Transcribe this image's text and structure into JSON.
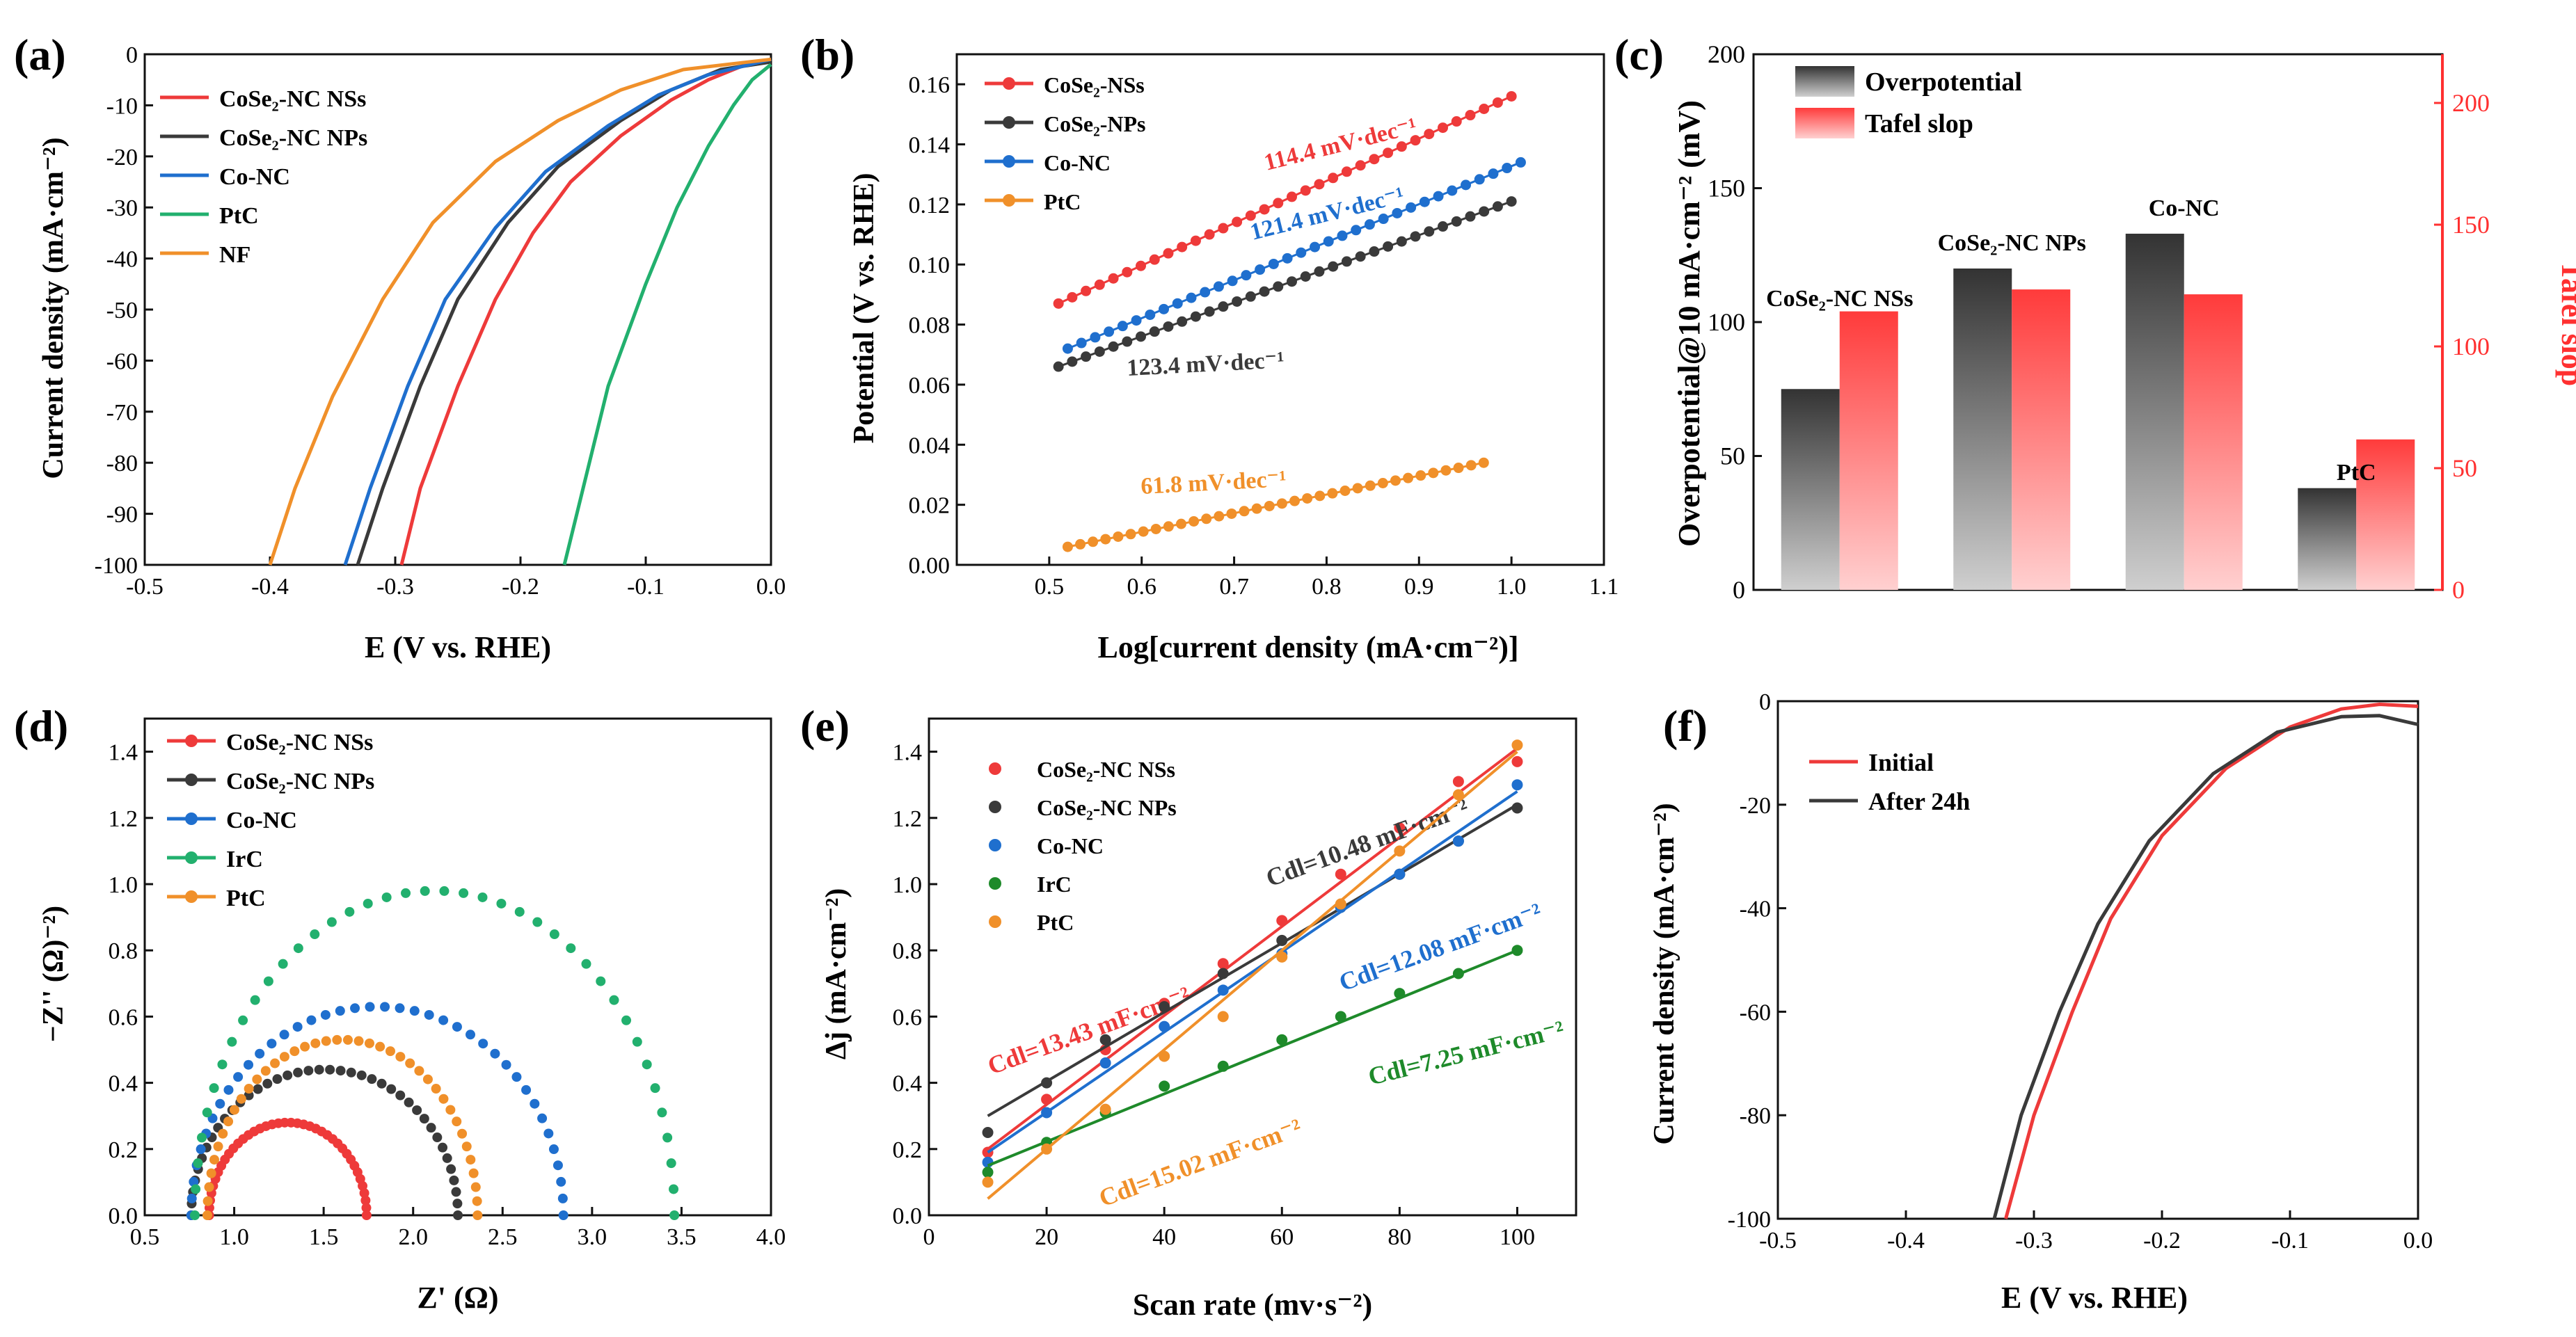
{
  "chart_data": [
    {
      "panel": "(a)",
      "type": "line",
      "xlabel": "E (V vs. RHE)",
      "ylabel": "Current density (mA·cm⁻²)",
      "xlim": [
        -0.5,
        0.0
      ],
      "ylim": [
        -100,
        0
      ],
      "xticks": [
        "-0.5",
        "-0.4",
        "-0.3",
        "-0.2",
        "-0.1",
        "0.0"
      ],
      "yticks": [
        "0",
        "-10",
        "-20",
        "-30",
        "-40",
        "-50",
        "-60",
        "-70",
        "-80",
        "-90",
        "-100"
      ],
      "legend_position": "top-left",
      "series": [
        {
          "name": "CoSe₂-NC NSs",
          "color": "#ee3a3a",
          "points": [
            [
              -0.295,
              -100
            ],
            [
              -0.28,
              -85
            ],
            [
              -0.25,
              -65
            ],
            [
              -0.22,
              -48
            ],
            [
              -0.19,
              -35
            ],
            [
              -0.16,
              -25
            ],
            [
              -0.12,
              -16
            ],
            [
              -0.08,
              -9
            ],
            [
              -0.05,
              -5
            ],
            [
              -0.02,
              -2
            ],
            [
              0.0,
              -1
            ]
          ]
        },
        {
          "name": "CoSe₂-NC NPs",
          "color": "#3a3a3a",
          "points": [
            [
              -0.33,
              -100
            ],
            [
              -0.31,
              -85
            ],
            [
              -0.28,
              -65
            ],
            [
              -0.25,
              -48
            ],
            [
              -0.21,
              -33
            ],
            [
              -0.17,
              -22
            ],
            [
              -0.12,
              -13
            ],
            [
              -0.08,
              -7
            ],
            [
              -0.04,
              -3
            ],
            [
              0.0,
              -1.5
            ]
          ]
        },
        {
          "name": "Co-NC",
          "color": "#1f6fce",
          "points": [
            [
              -0.34,
              -100
            ],
            [
              -0.32,
              -85
            ],
            [
              -0.29,
              -65
            ],
            [
              -0.26,
              -48
            ],
            [
              -0.22,
              -34
            ],
            [
              -0.18,
              -23
            ],
            [
              -0.13,
              -14
            ],
            [
              -0.09,
              -8
            ],
            [
              -0.05,
              -4
            ],
            [
              0.0,
              -1
            ]
          ]
        },
        {
          "name": "PtC",
          "color": "#22b06e",
          "points": [
            [
              -0.165,
              -100
            ],
            [
              -0.15,
              -85
            ],
            [
              -0.13,
              -65
            ],
            [
              -0.1,
              -45
            ],
            [
              -0.075,
              -30
            ],
            [
              -0.05,
              -18
            ],
            [
              -0.03,
              -10
            ],
            [
              -0.015,
              -5
            ],
            [
              0.0,
              -2
            ]
          ]
        },
        {
          "name": "NF",
          "color": "#f0902a",
          "points": [
            [
              -0.4,
              -100
            ],
            [
              -0.38,
              -85
            ],
            [
              -0.35,
              -67
            ],
            [
              -0.31,
              -48
            ],
            [
              -0.27,
              -33
            ],
            [
              -0.22,
              -21
            ],
            [
              -0.17,
              -13
            ],
            [
              -0.12,
              -7
            ],
            [
              -0.07,
              -3
            ],
            [
              0.0,
              -1
            ]
          ]
        }
      ]
    },
    {
      "panel": "(b)",
      "type": "scatter",
      "xlabel": "Log[current density (mA·cm⁻²)]",
      "ylabel": "Potential (V vs. RHE)",
      "xlim": [
        0.4,
        1.1
      ],
      "ylim": [
        0.0,
        0.17
      ],
      "xticks": [
        "0.5",
        "0.6",
        "0.7",
        "0.8",
        "0.9",
        "1.0",
        "1.1"
      ],
      "yticks": [
        "0.00",
        "0.02",
        "0.04",
        "0.06",
        "0.08",
        "0.10",
        "0.12",
        "0.14",
        "0.16"
      ],
      "legend_position": "top-left",
      "series": [
        {
          "name": "CoSe₂-NSs",
          "color": "#ee3a3a",
          "x_start": 0.51,
          "x_end": 1.0,
          "y_start": 0.087,
          "y_end": 0.156,
          "slope_label": "114.4 mV·dec⁻¹"
        },
        {
          "name": "CoSe₂-NPs",
          "color": "#3a3a3a",
          "x_start": 0.51,
          "x_end": 1.0,
          "y_start": 0.066,
          "y_end": 0.121,
          "slope_label": "123.4 mV·dec⁻¹"
        },
        {
          "name": "Co-NC",
          "color": "#1f6fce",
          "x_start": 0.52,
          "x_end": 1.01,
          "y_start": 0.072,
          "y_end": 0.134,
          "slope_label": "121.4 mV·dec⁻¹"
        },
        {
          "name": "PtC",
          "color": "#f0902a",
          "x_start": 0.52,
          "x_end": 0.97,
          "y_start": 0.006,
          "y_end": 0.034,
          "slope_label": "61.8 mV·dec⁻¹"
        }
      ]
    },
    {
      "panel": "(c)",
      "type": "bar",
      "categories": [
        "CoSe₂-NC NSs",
        "CoSe₂-NC NPs",
        "Co-NC",
        "PtC"
      ],
      "series": [
        {
          "name": "Overpotential",
          "axis": "left",
          "values": [
            75,
            120,
            133,
            38
          ]
        },
        {
          "name": "Tafel slop",
          "axis": "right",
          "values": [
            114.4,
            123.4,
            121.4,
            61.8
          ]
        }
      ],
      "ylabel": "Overpotential@10 mA·cm⁻² (mV)",
      "ylabel_right": "Tafel slop",
      "ylim": [
        0,
        200
      ],
      "ylim_right": [
        0,
        220
      ],
      "yticks": [
        "0",
        "50",
        "100",
        "150",
        "200"
      ],
      "yticks_right": [
        "0",
        "50",
        "100",
        "150",
        "200"
      ],
      "legend_position": "top-left",
      "colors": {
        "overpotential": "#333333",
        "tafel": "#ff4a4a",
        "right_axis": "#ff3030"
      }
    },
    {
      "panel": "(d)",
      "type": "scatter",
      "xlabel": "Z' (Ω)",
      "ylabel": "−Z'' (Ω)⁻²)",
      "xlim": [
        0.5,
        4.0
      ],
      "ylim": [
        0.0,
        1.5
      ],
      "xticks": [
        "0.5",
        "1.0",
        "1.5",
        "2.0",
        "2.5",
        "3.0",
        "3.5",
        "4.0"
      ],
      "yticks": [
        "0.0",
        "0.2",
        "0.4",
        "0.6",
        "0.8",
        "1.0",
        "1.2",
        "1.4"
      ],
      "legend_position": "top-left",
      "series": [
        {
          "name": "CoSe₂-NC NSs",
          "color": "#ee3a3a",
          "x0": 0.86,
          "x1": 1.74,
          "peak": 0.28
        },
        {
          "name": "CoSe₂-NC NPs",
          "color": "#3a3a3a",
          "x0": 0.76,
          "x1": 2.25,
          "peak": 0.44
        },
        {
          "name": "Co-NC",
          "color": "#1f6fce",
          "x0": 0.76,
          "x1": 2.84,
          "peak": 0.63
        },
        {
          "name": "IrC",
          "color": "#22b06e",
          "x0": 0.78,
          "x1": 3.46,
          "peak": 0.98
        },
        {
          "name": "PtC",
          "color": "#f0902a",
          "x0": 0.85,
          "x1": 2.36,
          "peak": 0.53
        }
      ]
    },
    {
      "panel": "(e)",
      "type": "scatter",
      "xlabel": "Scan rate (mv·s⁻²)",
      "ylabel": "Δj (mA·cm⁻²)",
      "xlim": [
        0,
        110
      ],
      "ylim": [
        0.0,
        1.5
      ],
      "xticks": [
        "0",
        "20",
        "40",
        "60",
        "80",
        "100"
      ],
      "yticks": [
        "0.0",
        "0.2",
        "0.4",
        "0.6",
        "0.8",
        "1.0",
        "1.2",
        "1.4"
      ],
      "legend_position": "top-left",
      "x": [
        10,
        20,
        30,
        40,
        50,
        60,
        70,
        80,
        90,
        100
      ],
      "series": [
        {
          "name": "CoSe₂-NC NSs",
          "color": "#ee3a3a",
          "values": [
            0.19,
            0.35,
            0.5,
            0.64,
            0.76,
            0.89,
            1.03,
            1.17,
            1.31,
            1.37
          ],
          "fit": [
            0.2,
            1.41
          ],
          "label": "Cdl=13.43 mF·cm⁻²"
        },
        {
          "name": "CoSe₂-NC NPs",
          "color": "#3a3a3a",
          "values": [
            0.25,
            0.4,
            0.53,
            0.63,
            0.73,
            0.83,
            0.93,
            1.03,
            1.13,
            1.23
          ],
          "fit": [
            0.3,
            1.24
          ],
          "label": "Cdl=10.48 mF·cm⁻²"
        },
        {
          "name": "Co-NC",
          "color": "#1f6fce",
          "values": [
            0.16,
            0.31,
            0.46,
            0.57,
            0.68,
            0.79,
            0.93,
            1.03,
            1.13,
            1.3
          ],
          "fit": [
            0.19,
            1.28
          ],
          "label": "Cdl=12.08 mF·cm⁻²"
        },
        {
          "name": "IrC",
          "color": "#1e8a2a",
          "values": [
            0.13,
            0.22,
            0.31,
            0.39,
            0.45,
            0.53,
            0.6,
            0.67,
            0.73,
            0.8
          ],
          "fit": [
            0.15,
            0.8
          ],
          "label": "Cdl=7.25 mF·cm⁻²"
        },
        {
          "name": "PtC",
          "color": "#f0902a",
          "values": [
            0.1,
            0.2,
            0.32,
            0.48,
            0.6,
            0.78,
            0.94,
            1.1,
            1.27,
            1.42
          ],
          "fit": [
            0.05,
            1.4
          ],
          "label": "Cdl=15.02 mF·cm⁻²"
        }
      ]
    },
    {
      "panel": "(f)",
      "type": "line",
      "xlabel": "E (V vs. RHE)",
      "ylabel": "Current density (mA·cm⁻²)",
      "xlim": [
        -0.5,
        0.0
      ],
      "ylim": [
        -100,
        0
      ],
      "xticks": [
        "-0.5",
        "-0.4",
        "-0.3",
        "-0.2",
        "-0.1",
        "0.0"
      ],
      "yticks": [
        "0",
        "-20",
        "-40",
        "-60",
        "-80",
        "-100"
      ],
      "legend_position": "top-left",
      "series": [
        {
          "name": "Initial",
          "color": "#ee3a3a",
          "points": [
            [
              -0.322,
              -100
            ],
            [
              -0.3,
              -80
            ],
            [
              -0.27,
              -60
            ],
            [
              -0.24,
              -42
            ],
            [
              -0.2,
              -26
            ],
            [
              -0.15,
              -13
            ],
            [
              -0.1,
              -5
            ],
            [
              -0.06,
              -1.5
            ],
            [
              -0.03,
              -0.6
            ],
            [
              0.0,
              -1
            ]
          ]
        },
        {
          "name": "After 24h",
          "color": "#3a3a3a",
          "points": [
            [
              -0.331,
              -100
            ],
            [
              -0.31,
              -80
            ],
            [
              -0.28,
              -60
            ],
            [
              -0.25,
              -43
            ],
            [
              -0.21,
              -27
            ],
            [
              -0.16,
              -14
            ],
            [
              -0.11,
              -6
            ],
            [
              -0.06,
              -3
            ],
            [
              -0.03,
              -2.8
            ],
            [
              0.0,
              -4.5
            ]
          ]
        }
      ]
    }
  ]
}
